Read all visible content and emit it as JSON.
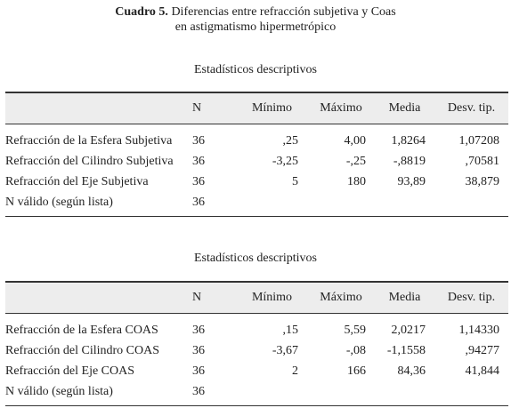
{
  "caption": {
    "label": "Cuadro 5.",
    "line1": "Diferencias entre refracción subjetiva y Coas",
    "line2": "en astigmatismo hipermetrópico"
  },
  "tables": [
    {
      "title": "Estadísticos descriptivos",
      "headers": [
        "",
        "N",
        "Mínimo",
        "Máximo",
        "Media",
        "Desv. tip."
      ],
      "rows": [
        [
          "Refracción de la Esfera Subjetiva",
          "36",
          ",25",
          "4,00",
          "1,8264",
          "1,07208"
        ],
        [
          "Refracción del Cilindro Subjetiva",
          "36",
          "-3,25",
          "-,25",
          "-,8819",
          ",70581"
        ],
        [
          "Refracción del Eje Subjetiva",
          "36",
          "5",
          "180",
          "93,89",
          "38,879"
        ],
        [
          "N válido (según lista)",
          "36",
          "",
          "",
          "",
          ""
        ]
      ]
    },
    {
      "title": "Estadísticos descriptivos",
      "headers": [
        "",
        "N",
        "Mínimo",
        "Máximo",
        "Media",
        "Desv. tip."
      ],
      "rows": [
        [
          "Refracción de la Esfera COAS",
          "36",
          ",15",
          "5,59",
          "2,0217",
          "1,14330"
        ],
        [
          "Refracción del Cilindro COAS",
          "36",
          "-3,67",
          "-,08",
          "-1,1558",
          ",94277"
        ],
        [
          "Refracción del Eje COAS",
          "36",
          "2",
          "166",
          "84,36",
          "41,844"
        ],
        [
          "N válido (según lista)",
          "36",
          "",
          "",
          "",
          ""
        ]
      ]
    }
  ]
}
